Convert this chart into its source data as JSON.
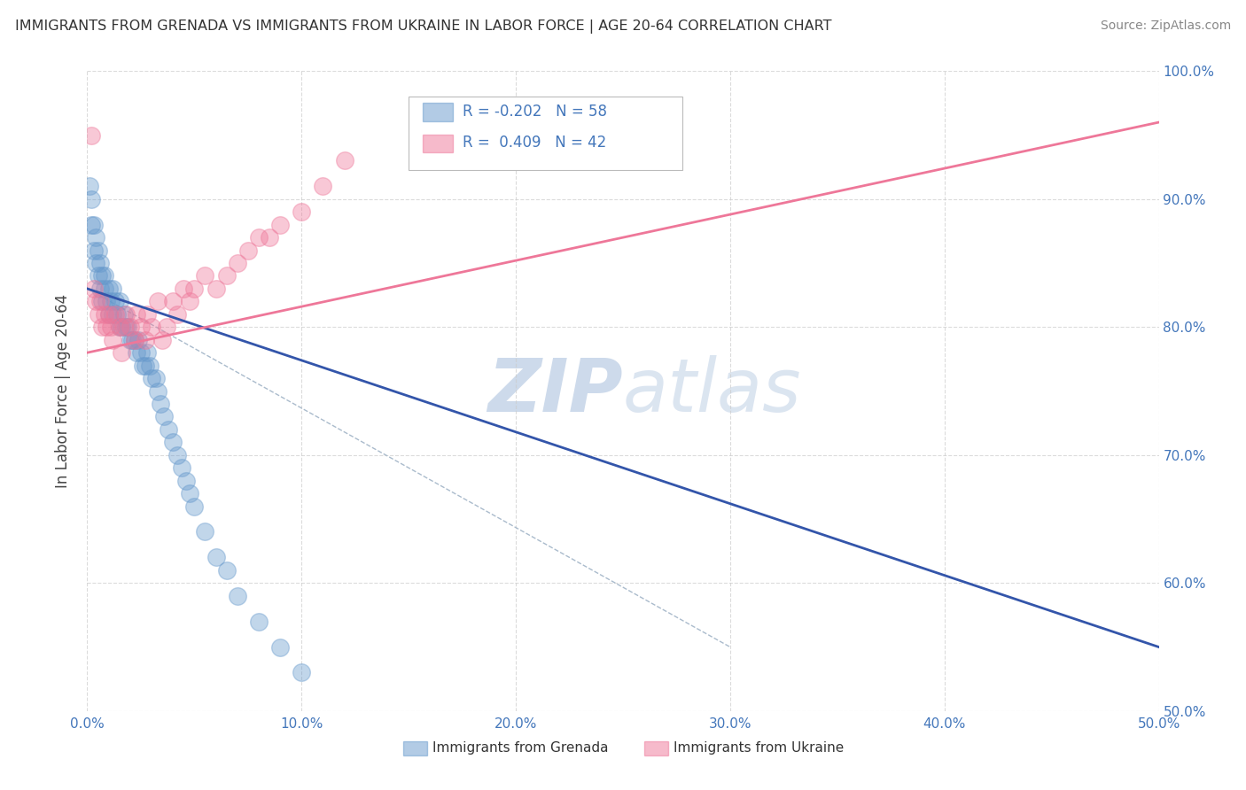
{
  "title": "IMMIGRANTS FROM GRENADA VS IMMIGRANTS FROM UKRAINE IN LABOR FORCE | AGE 20-64 CORRELATION CHART",
  "source": "Source: ZipAtlas.com",
  "ylabel": "In Labor Force | Age 20-64",
  "xlim": [
    0.0,
    0.5
  ],
  "ylim": [
    0.5,
    1.0
  ],
  "xtick_vals": [
    0.0,
    0.1,
    0.2,
    0.3,
    0.4,
    0.5
  ],
  "xtick_labels": [
    "0.0%",
    "10.0%",
    "20.0%",
    "30.0%",
    "40.0%",
    "50.0%"
  ],
  "ytick_vals": [
    0.5,
    0.6,
    0.7,
    0.8,
    0.9,
    1.0
  ],
  "ytick_labels": [
    "50.0%",
    "60.0%",
    "70.0%",
    "80.0%",
    "90.0%",
    "100.0%"
  ],
  "grenada_color": "#6699cc",
  "ukraine_color": "#ee7799",
  "background_color": "#ffffff",
  "grid_color": "#cccccc",
  "watermark_color": "#cddaeb",
  "grenada_scatter_x": [
    0.001,
    0.002,
    0.002,
    0.003,
    0.003,
    0.004,
    0.004,
    0.005,
    0.005,
    0.006,
    0.006,
    0.007,
    0.007,
    0.008,
    0.008,
    0.009,
    0.01,
    0.01,
    0.011,
    0.012,
    0.012,
    0.013,
    0.014,
    0.015,
    0.015,
    0.016,
    0.017,
    0.018,
    0.019,
    0.02,
    0.021,
    0.022,
    0.023,
    0.024,
    0.025,
    0.026,
    0.027,
    0.028,
    0.029,
    0.03,
    0.032,
    0.033,
    0.034,
    0.036,
    0.038,
    0.04,
    0.042,
    0.044,
    0.046,
    0.048,
    0.05,
    0.055,
    0.06,
    0.065,
    0.07,
    0.08,
    0.09,
    0.1
  ],
  "grenada_scatter_y": [
    0.91,
    0.9,
    0.88,
    0.88,
    0.86,
    0.87,
    0.85,
    0.86,
    0.84,
    0.85,
    0.83,
    0.84,
    0.82,
    0.83,
    0.84,
    0.82,
    0.83,
    0.81,
    0.82,
    0.83,
    0.81,
    0.82,
    0.81,
    0.8,
    0.82,
    0.8,
    0.81,
    0.8,
    0.8,
    0.79,
    0.79,
    0.79,
    0.78,
    0.79,
    0.78,
    0.77,
    0.77,
    0.78,
    0.77,
    0.76,
    0.76,
    0.75,
    0.74,
    0.73,
    0.72,
    0.71,
    0.7,
    0.69,
    0.68,
    0.67,
    0.66,
    0.64,
    0.62,
    0.61,
    0.59,
    0.57,
    0.55,
    0.53
  ],
  "ukraine_scatter_x": [
    0.002,
    0.003,
    0.004,
    0.005,
    0.006,
    0.007,
    0.008,
    0.009,
    0.01,
    0.011,
    0.012,
    0.013,
    0.015,
    0.016,
    0.017,
    0.018,
    0.02,
    0.022,
    0.023,
    0.025,
    0.027,
    0.028,
    0.03,
    0.033,
    0.035,
    0.037,
    0.04,
    0.042,
    0.045,
    0.048,
    0.05,
    0.055,
    0.06,
    0.065,
    0.07,
    0.075,
    0.08,
    0.085,
    0.09,
    0.1,
    0.11,
    0.12
  ],
  "ukraine_scatter_y": [
    0.95,
    0.83,
    0.82,
    0.81,
    0.82,
    0.8,
    0.81,
    0.8,
    0.81,
    0.8,
    0.79,
    0.81,
    0.8,
    0.78,
    0.8,
    0.81,
    0.8,
    0.79,
    0.81,
    0.8,
    0.79,
    0.81,
    0.8,
    0.82,
    0.79,
    0.8,
    0.82,
    0.81,
    0.83,
    0.82,
    0.83,
    0.84,
    0.83,
    0.84,
    0.85,
    0.86,
    0.87,
    0.87,
    0.88,
    0.89,
    0.91,
    0.93
  ],
  "grenada_line_x": [
    0.0,
    0.5
  ],
  "grenada_line_y": [
    0.83,
    0.55
  ],
  "ukraine_line_x": [
    0.0,
    0.5
  ],
  "ukraine_line_y": [
    0.78,
    0.96
  ],
  "diagonal_line_x": [
    0.0,
    0.3
  ],
  "diagonal_line_y": [
    0.83,
    0.55
  ]
}
